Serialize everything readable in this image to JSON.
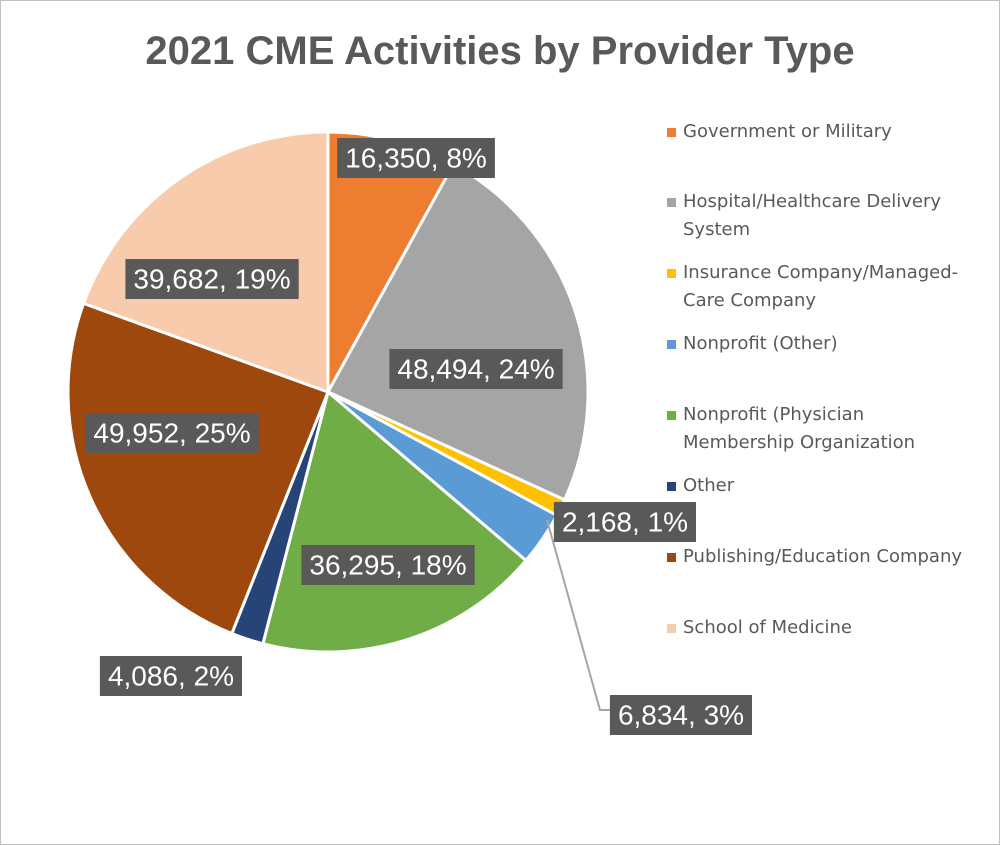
{
  "chart_data": {
    "type": "pie",
    "title": "2021 CME Activities by Provider Type",
    "slices": [
      {
        "name": "Government or Military",
        "value": 16350,
        "percent": 8,
        "label": "16,350, 8%",
        "color": "#ED7D31"
      },
      {
        "name": "Hospital/Healthcare Delivery System",
        "value": 48494,
        "percent": 24,
        "label": "48,494, 24%",
        "color": "#A5A5A5"
      },
      {
        "name": "Insurance Company/Managed-Care Company",
        "value": 2168,
        "percent": 1,
        "label": "2,168, 1%",
        "color": "#FFC000"
      },
      {
        "name": "Nonprofit (Other)",
        "value": 6834,
        "percent": 3,
        "label": "6,834, 3%",
        "color": "#5B9BD5"
      },
      {
        "name": "Nonprofit (Physician Membership Organization",
        "value": 36295,
        "percent": 18,
        "label": "36,295, 18%",
        "color": "#70AD47"
      },
      {
        "name": "Other",
        "value": 4086,
        "percent": 2,
        "label": "4,086, 2%",
        "color": "#264478"
      },
      {
        "name": "Publishing/Education Company",
        "value": 49952,
        "percent": 25,
        "label": "49,952, 25%",
        "color": "#9E480E"
      },
      {
        "name": "School of Medicine",
        "value": 39682,
        "percent": 19,
        "label": "39,682, 19%",
        "color": "#F8CBAD"
      }
    ],
    "legend": {
      "position": "right",
      "items": [
        {
          "lines": [
            "Government or Military"
          ]
        },
        {
          "lines": [
            "Hospital/Healthcare Delivery",
            "System"
          ]
        },
        {
          "lines": [
            "Insurance Company/Managed-",
            "Care Company"
          ]
        },
        {
          "lines": [
            "Nonprofit (Other)"
          ]
        },
        {
          "lines": [
            "Nonprofit (Physician",
            "Membership Organization"
          ]
        },
        {
          "lines": [
            "Other"
          ]
        },
        {
          "lines": [
            "Publishing/Education Company"
          ]
        },
        {
          "lines": [
            "School of Medicine"
          ]
        }
      ]
    },
    "data_label_style": {
      "background": "#595959",
      "color": "#ffffff"
    }
  }
}
